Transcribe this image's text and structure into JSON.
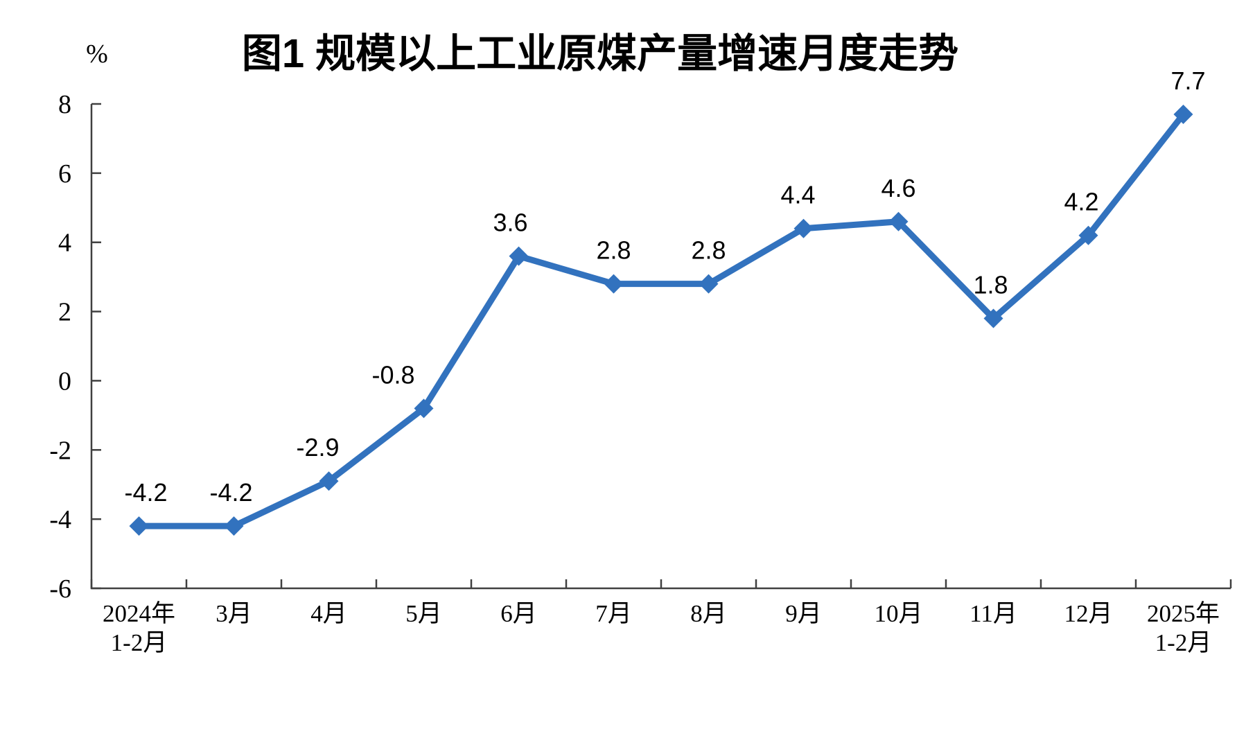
{
  "chart_data": {
    "type": "line",
    "title": "图1 规模以上工业原煤产量增速月度走势",
    "unit_label": "%",
    "categories": [
      [
        "2024年",
        "1-2月"
      ],
      [
        "3月"
      ],
      [
        "4月"
      ],
      [
        "5月"
      ],
      [
        "6月"
      ],
      [
        "7月"
      ],
      [
        "8月"
      ],
      [
        "9月"
      ],
      [
        "10月"
      ],
      [
        "11月"
      ],
      [
        "12月"
      ],
      [
        "2025年",
        "1-2月"
      ]
    ],
    "series": [
      {
        "name": "规模以上工业原煤产量增速",
        "values": [
          -4.2,
          -4.2,
          -2.9,
          -0.8,
          3.6,
          2.8,
          2.8,
          4.4,
          4.6,
          1.8,
          4.2,
          7.7
        ],
        "data_labels": [
          "-4.2",
          "-4.2",
          "-2.9",
          "-0.8",
          "3.6",
          "2.8",
          "2.8",
          "4.4",
          "4.6",
          "1.8",
          "4.2",
          "7.7"
        ]
      }
    ],
    "y_axis": {
      "min": -6,
      "max": 8,
      "step": 2,
      "tick_labels": [
        "8",
        "6",
        "4",
        "2",
        "0",
        "-2",
        "-4",
        "-6"
      ]
    },
    "grid": false,
    "legend_position": "none",
    "marker": "diamond",
    "colors": {
      "series": "#3272BE",
      "axis": "#404040",
      "text": "#000000",
      "background": "#ffffff"
    }
  }
}
